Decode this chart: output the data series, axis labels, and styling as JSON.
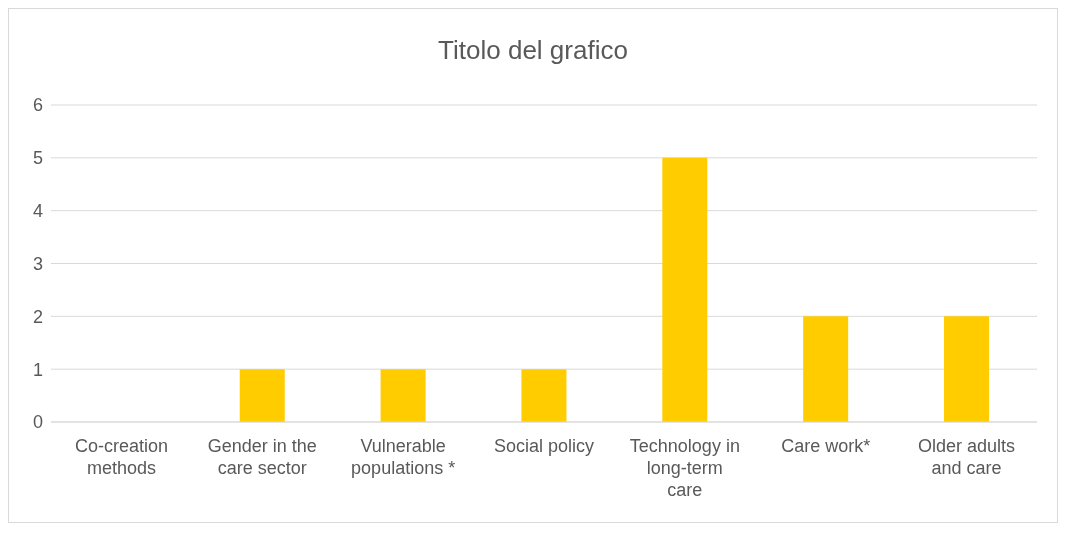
{
  "chart_data": {
    "type": "bar",
    "title": "Titolo del grafico",
    "categories": [
      "Co-creation methods",
      "Gender in the care sector",
      "Vulnerable populations *",
      "Social policy",
      "Technology in long-term care",
      "Care work*",
      "Older adults and care"
    ],
    "values": [
      0,
      1,
      1,
      1,
      5,
      2,
      2
    ],
    "color": "#ffcc00",
    "ylim": [
      0,
      6
    ],
    "yticks": [
      0,
      1,
      2,
      3,
      4,
      5,
      6
    ],
    "grid": "y"
  }
}
